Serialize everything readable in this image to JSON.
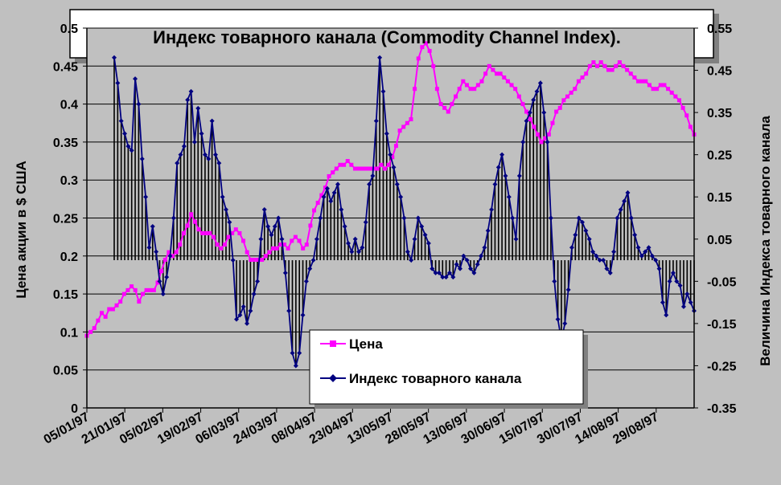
{
  "chart_data": {
    "type": "line",
    "title": "Индекс товарного канала (Commodity Channel Index).",
    "ylabel": "Цена акции в $ США",
    "y2label": "Величина Индекса товарного канала",
    "ylim": [
      0,
      0.5
    ],
    "y2lim": [
      -0.35,
      0.55
    ],
    "yticks": [
      "0",
      "0.05",
      "0.1",
      "0.15",
      "0.2",
      "0.25",
      "0.3",
      "0.35",
      "0.4",
      "0.45",
      "0.5"
    ],
    "y2ticks": [
      "-0.35",
      "-0.25",
      "-0.15",
      "-0.05",
      "0.05",
      "0.15",
      "0.25",
      "0.35",
      "0.45",
      "0.55"
    ],
    "xticks": [
      "05/01/97",
      "21/01/97",
      "05/02/97",
      "19/02/97",
      "06/03/97",
      "24/03/97",
      "08/04/97",
      "23/04/97",
      "13/05/97",
      "28/05/97",
      "13/06/97",
      "30/06/97",
      "15/07/97",
      "30/07/97",
      "14/08/97",
      "29/08/97"
    ],
    "grid": "horizontal",
    "legend_position": "bottom-center",
    "colors": {
      "price": "#ff00ff",
      "cci": "#000080",
      "plot_bg": "#c0c0c0"
    },
    "series": [
      {
        "name": "Цена",
        "axis": "left",
        "values": [
          0.095,
          0.1,
          0.105,
          0.115,
          0.125,
          0.12,
          0.13,
          0.13,
          0.135,
          0.14,
          0.15,
          0.155,
          0.16,
          0.155,
          0.14,
          0.15,
          0.155,
          0.155,
          0.155,
          0.165,
          0.18,
          0.195,
          0.205,
          0.2,
          0.205,
          0.215,
          0.23,
          0.24,
          0.255,
          0.245,
          0.235,
          0.23,
          0.23,
          0.23,
          0.225,
          0.215,
          0.21,
          0.215,
          0.225,
          0.23,
          0.235,
          0.23,
          0.22,
          0.205,
          0.195,
          0.195,
          0.195,
          0.195,
          0.2,
          0.205,
          0.21,
          0.21,
          0.215,
          0.215,
          0.21,
          0.22,
          0.225,
          0.22,
          0.21,
          0.215,
          0.24,
          0.26,
          0.27,
          0.28,
          0.29,
          0.305,
          0.31,
          0.315,
          0.32,
          0.32,
          0.325,
          0.32,
          0.315,
          0.315,
          0.315,
          0.315,
          0.315,
          0.315,
          0.315,
          0.32,
          0.315,
          0.32,
          0.33,
          0.345,
          0.365,
          0.37,
          0.375,
          0.38,
          0.42,
          0.46,
          0.475,
          0.48,
          0.47,
          0.45,
          0.42,
          0.4,
          0.395,
          0.39,
          0.4,
          0.41,
          0.42,
          0.43,
          0.425,
          0.42,
          0.42,
          0.425,
          0.43,
          0.44,
          0.45,
          0.445,
          0.44,
          0.44,
          0.435,
          0.43,
          0.425,
          0.42,
          0.41,
          0.4,
          0.39,
          0.38,
          0.37,
          0.36,
          0.35,
          0.355,
          0.36,
          0.375,
          0.39,
          0.395,
          0.405,
          0.41,
          0.415,
          0.42,
          0.43,
          0.435,
          0.44,
          0.45,
          0.455,
          0.45,
          0.455,
          0.45,
          0.445,
          0.445,
          0.45,
          0.455,
          0.45,
          0.445,
          0.44,
          0.435,
          0.43,
          0.43,
          0.43,
          0.425,
          0.42,
          0.42,
          0.425,
          0.425,
          0.42,
          0.415,
          0.41,
          0.405,
          0.395,
          0.385,
          0.37,
          0.36
        ]
      },
      {
        "name": "Индекс товарного канала",
        "axis": "right",
        "values": [
          0.48,
          0.42,
          0.33,
          0.3,
          0.27,
          0.26,
          0.43,
          0.37,
          0.24,
          0.15,
          0.03,
          0.08,
          0.02,
          -0.05,
          -0.08,
          -0.04,
          0.01,
          0.1,
          0.23,
          0.25,
          0.27,
          0.38,
          0.4,
          0.28,
          0.36,
          0.3,
          0.25,
          0.24,
          0.33,
          0.25,
          0.23,
          0.15,
          0.12,
          0.09,
          0.0,
          -0.14,
          -0.13,
          -0.11,
          -0.15,
          -0.12,
          -0.08,
          -0.05,
          0.05,
          0.12,
          0.08,
          0.06,
          0.08,
          0.1,
          0.05,
          -0.03,
          -0.12,
          -0.22,
          -0.25,
          -0.22,
          -0.13,
          -0.05,
          -0.02,
          0.0,
          0.05,
          0.1,
          0.15,
          0.17,
          0.14,
          0.16,
          0.18,
          0.12,
          0.08,
          0.04,
          0.02,
          0.05,
          0.02,
          0.03,
          0.09,
          0.18,
          0.2,
          0.33,
          0.48,
          0.4,
          0.3,
          0.25,
          0.22,
          0.18,
          0.15,
          0.1,
          0.02,
          0.0,
          0.05,
          0.1,
          0.08,
          0.06,
          0.04,
          -0.02,
          -0.03,
          -0.03,
          -0.04,
          -0.04,
          -0.03,
          -0.04,
          -0.01,
          -0.02,
          0.01,
          0.0,
          -0.02,
          -0.03,
          -0.01,
          0.01,
          0.03,
          0.07,
          0.12,
          0.18,
          0.22,
          0.25,
          0.2,
          0.15,
          0.1,
          0.05,
          0.2,
          0.28,
          0.33,
          0.35,
          0.38,
          0.4,
          0.42,
          0.35,
          0.28,
          0.1,
          -0.05,
          -0.14,
          -0.19,
          -0.15,
          -0.07,
          0.03,
          0.06,
          0.1,
          0.09,
          0.07,
          0.05,
          0.02,
          0.01,
          0.0,
          0.0,
          -0.02,
          -0.03,
          0.02,
          0.1,
          0.12,
          0.14,
          0.16,
          0.1,
          0.06,
          0.03,
          0.01,
          0.02,
          0.03,
          0.01,
          0.0,
          -0.02,
          -0.1,
          -0.13,
          -0.05,
          -0.03,
          -0.05,
          -0.06,
          -0.11,
          -0.08,
          -0.1,
          -0.12
        ]
      }
    ]
  },
  "legend": {
    "price_label": "Цена",
    "cci_label": "Индекс товарного канала"
  }
}
